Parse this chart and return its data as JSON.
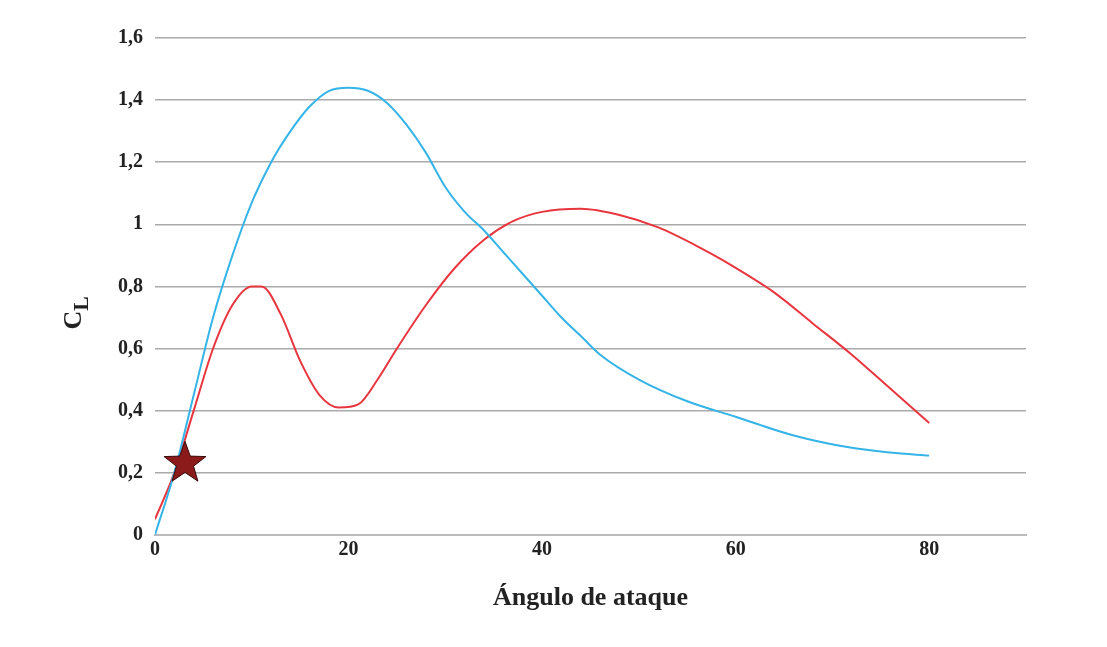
{
  "chart_data": {
    "type": "line",
    "xlabel": "Ángulo de ataque",
    "ylabel": "C$_{L}$",
    "xlim": [
      0,
      90
    ],
    "xticks": [
      0,
      20,
      40,
      60,
      80
    ],
    "ylim": [
      0,
      1.6
    ],
    "yticks": [
      0,
      {
        "value": 0.2,
        "label": "0,2"
      },
      {
        "value": 0.4,
        "label": "0,4"
      },
      {
        "value": 0.6,
        "label": "0,6"
      },
      {
        "value": 0.8,
        "label": "0,8"
      },
      1,
      {
        "value": 1.2,
        "label": "1,2"
      },
      {
        "value": 1.4,
        "label": "1,4"
      },
      {
        "value": 1.6,
        "label": "1,6"
      }
    ],
    "grid": "y",
    "legend": false,
    "marker": "none",
    "line_style": "solid",
    "series": [
      {
        "color": "#35b4e8",
        "x": [
          0,
          2,
          4,
          6,
          8,
          10,
          12,
          14,
          16,
          18,
          20,
          22,
          24,
          26,
          28,
          30,
          32,
          34,
          36,
          38,
          40,
          42,
          44,
          46,
          50,
          55,
          60,
          66,
          72,
          76,
          80
        ],
        "values": [
          0,
          0.2,
          0.45,
          0.7,
          0.9,
          1.07,
          1.2,
          1.3,
          1.38,
          1.43,
          1.44,
          1.43,
          1.39,
          1.32,
          1.23,
          1.12,
          1.04,
          0.98,
          0.91,
          0.84,
          0.77,
          0.7,
          0.64,
          0.58,
          0.5,
          0.43,
          0.38,
          0.32,
          0.28,
          0.265,
          0.255
        ]
      },
      {
        "color": "#e8363f",
        "x": [
          0,
          2,
          4,
          6,
          8,
          10,
          11,
          13,
          15,
          17,
          19,
          21,
          23,
          25,
          28,
          31,
          34,
          37,
          40,
          44,
          48,
          52,
          56,
          60,
          64,
          68,
          72,
          76,
          80
        ],
        "values": [
          0.05,
          0.2,
          0.4,
          0.6,
          0.74,
          0.8,
          0.8,
          0.71,
          0.56,
          0.45,
          0.41,
          0.42,
          0.5,
          0.6,
          0.74,
          0.86,
          0.95,
          1.01,
          1.04,
          1.05,
          1.03,
          0.99,
          0.93,
          0.86,
          0.78,
          0.68,
          0.58,
          0.47,
          0.36
        ]
      },
      {
        "type": "scatter",
        "marker": "star",
        "color": "#8b1a1a",
        "x": [
          3.1
        ],
        "values": [
          0.23
        ]
      }
    ]
  }
}
